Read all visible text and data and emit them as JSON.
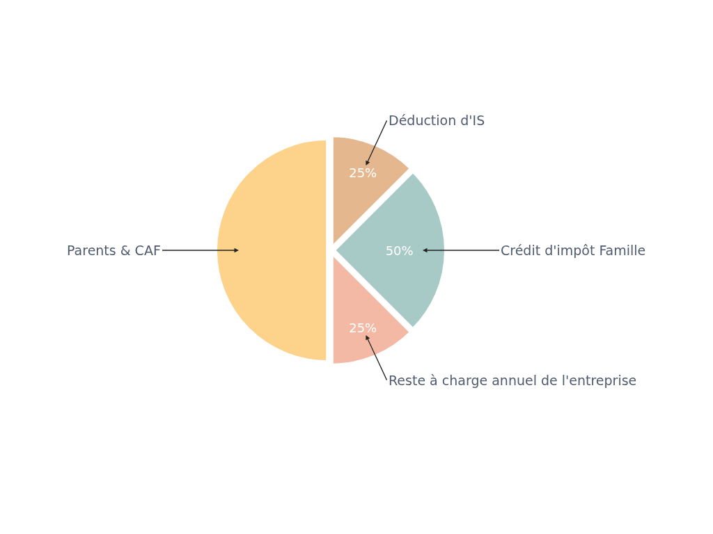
{
  "chart_data": {
    "type": "pie",
    "categories": [
      "Déduction d'IS",
      "Crédit d'impôt Famille",
      "Reste à charge annuel de l'entreprise",
      "Parents & CAF"
    ],
    "values": [
      25,
      50,
      25,
      100
    ],
    "value_labels": [
      "25%",
      "50%",
      "25%",
      null
    ],
    "colors": [
      "#e4b78e",
      "#a8cac6",
      "#f4b9a4",
      "#fdd38b"
    ],
    "legend": false
  }
}
